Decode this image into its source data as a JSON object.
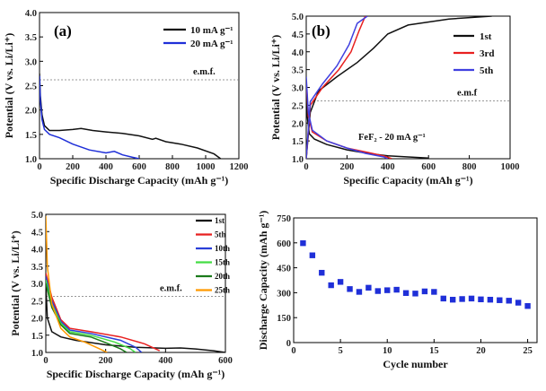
{
  "chart_data": [
    {
      "panel": "(a)",
      "type": "line",
      "xlabel": "Specific Discharge Capacity (mAh g⁻¹)",
      "ylabel": "Potential (V vs. Li/Li⁺)",
      "xlim": [
        0,
        1200
      ],
      "ylim": [
        1.0,
        4.0
      ],
      "xticks": [
        "0",
        "200",
        "400",
        "600",
        "800",
        "1000",
        "1200"
      ],
      "yticks": [
        "1.0",
        "1.5",
        "2.0",
        "2.5",
        "3.0",
        "3.5",
        "4.0"
      ],
      "hline": {
        "y": 2.62,
        "label": "e.m.f."
      },
      "legend_position": "top-right",
      "series": [
        {
          "name": "10 mA g⁻¹",
          "color": "#111111",
          "points": [
            [
              0,
              2.75
            ],
            [
              5,
              2.3
            ],
            [
              15,
              1.9
            ],
            [
              30,
              1.68
            ],
            [
              60,
              1.58
            ],
            [
              120,
              1.58
            ],
            [
              200,
              1.6
            ],
            [
              250,
              1.62
            ],
            [
              320,
              1.58
            ],
            [
              400,
              1.55
            ],
            [
              500,
              1.52
            ],
            [
              600,
              1.47
            ],
            [
              680,
              1.4
            ],
            [
              700,
              1.42
            ],
            [
              760,
              1.35
            ],
            [
              850,
              1.3
            ],
            [
              950,
              1.22
            ],
            [
              1050,
              1.1
            ],
            [
              1090,
              1.0
            ]
          ]
        },
        {
          "name": "20 mA g⁻¹",
          "color": "#1f2fd8",
          "points": [
            [
              0,
              2.7
            ],
            [
              5,
              2.2
            ],
            [
              15,
              1.8
            ],
            [
              30,
              1.6
            ],
            [
              60,
              1.5
            ],
            [
              120,
              1.43
            ],
            [
              200,
              1.3
            ],
            [
              300,
              1.18
            ],
            [
              400,
              1.12
            ],
            [
              450,
              1.15
            ],
            [
              500,
              1.08
            ],
            [
              560,
              1.03
            ],
            [
              600,
              1.0
            ]
          ]
        }
      ]
    },
    {
      "panel": "(b)",
      "type": "line",
      "xlabel": "Specific Capacity (mAh g⁻¹)",
      "ylabel": "Potential (V vs. Li/Li⁺)",
      "xlim": [
        0,
        1000
      ],
      "ylim": [
        1.0,
        5.0
      ],
      "xticks": [
        "0",
        "200",
        "400",
        "600",
        "800",
        "1000"
      ],
      "yticks": [
        "1.0",
        "1.5",
        "2.0",
        "2.5",
        "3.0",
        "3.5",
        "4.0",
        "4.5",
        "5.0"
      ],
      "hline": {
        "y": 2.62,
        "label": "e.m.f"
      },
      "annotation": "FeF₂ - 20 mA g⁻¹",
      "legend_position": "top-right",
      "series": [
        {
          "name": "1st",
          "color": "#111111",
          "discharge": [
            [
              0,
              3.2
            ],
            [
              5,
              2.2
            ],
            [
              15,
              1.7
            ],
            [
              40,
              1.55
            ],
            [
              100,
              1.4
            ],
            [
              200,
              1.25
            ],
            [
              300,
              1.15
            ],
            [
              400,
              1.08
            ],
            [
              500,
              1.05
            ],
            [
              600,
              1.02
            ]
          ],
          "charge": [
            [
              0,
              1.0
            ],
            [
              20,
              2.3
            ],
            [
              60,
              2.9
            ],
            [
              150,
              3.3
            ],
            [
              250,
              3.7
            ],
            [
              330,
              4.1
            ],
            [
              400,
              4.5
            ],
            [
              500,
              4.75
            ],
            [
              700,
              4.92
            ],
            [
              910,
              5.0
            ]
          ]
        },
        {
          "name": "3rd",
          "color": "#e82020",
          "discharge": [
            [
              0,
              3.2
            ],
            [
              10,
              2.2
            ],
            [
              30,
              1.75
            ],
            [
              100,
              1.5
            ],
            [
              200,
              1.3
            ],
            [
              300,
              1.18
            ],
            [
              380,
              1.08
            ],
            [
              420,
              1.0
            ]
          ],
          "charge": [
            [
              0,
              1.0
            ],
            [
              20,
              2.5
            ],
            [
              80,
              3.0
            ],
            [
              160,
              3.5
            ],
            [
              220,
              4.0
            ],
            [
              260,
              4.6
            ],
            [
              290,
              5.0
            ]
          ]
        },
        {
          "name": "5th",
          "color": "#4040e0",
          "discharge": [
            [
              0,
              3.3
            ],
            [
              10,
              2.3
            ],
            [
              30,
              1.8
            ],
            [
              100,
              1.5
            ],
            [
              200,
              1.3
            ],
            [
              290,
              1.15
            ],
            [
              380,
              1.05
            ],
            [
              400,
              1.0
            ]
          ],
          "charge": [
            [
              0,
              1.0
            ],
            [
              20,
              2.6
            ],
            [
              80,
              3.1
            ],
            [
              150,
              3.6
            ],
            [
              210,
              4.2
            ],
            [
              250,
              4.8
            ],
            [
              300,
              5.0
            ]
          ]
        }
      ]
    },
    {
      "panel": "(c)",
      "type": "line",
      "xlabel": "Specific Discharge Capacity (mAh g⁻¹)",
      "ylabel": "Potential (V vs. Li/Li⁺)",
      "xlim": [
        0,
        600
      ],
      "ylim": [
        1.0,
        5.0
      ],
      "xticks": [
        "0",
        "200",
        "400",
        "600"
      ],
      "yticks": [
        "1.0",
        "1.5",
        "2.0",
        "2.5",
        "3.0",
        "3.5",
        "4.0",
        "4.5",
        "5.0"
      ],
      "hline": {
        "y": 2.62,
        "label": "e.m.f."
      },
      "legend_position": "top-right",
      "series": [
        {
          "name": "1st",
          "color": "#111111",
          "points": [
            [
              0,
              3.0
            ],
            [
              5,
              2.0
            ],
            [
              20,
              1.6
            ],
            [
              50,
              1.45
            ],
            [
              100,
              1.35
            ],
            [
              200,
              1.22
            ],
            [
              300,
              1.15
            ],
            [
              400,
              1.12
            ],
            [
              450,
              1.13
            ],
            [
              500,
              1.1
            ],
            [
              560,
              1.05
            ],
            [
              600,
              1.0
            ]
          ]
        },
        {
          "name": "5th",
          "color": "#e82020",
          "points": [
            [
              0,
              3.3
            ],
            [
              20,
              2.6
            ],
            [
              50,
              1.95
            ],
            [
              80,
              1.7
            ],
            [
              150,
              1.6
            ],
            [
              250,
              1.45
            ],
            [
              330,
              1.25
            ],
            [
              380,
              1.05
            ]
          ]
        },
        {
          "name": "10th",
          "color": "#2a3fd8",
          "points": [
            [
              0,
              3.2
            ],
            [
              20,
              2.5
            ],
            [
              50,
              1.9
            ],
            [
              80,
              1.65
            ],
            [
              150,
              1.55
            ],
            [
              250,
              1.35
            ],
            [
              300,
              1.15
            ],
            [
              320,
              1.0
            ]
          ]
        },
        {
          "name": "15th",
          "color": "#44dd44",
          "points": [
            [
              0,
              3.1
            ],
            [
              20,
              2.4
            ],
            [
              50,
              1.85
            ],
            [
              80,
              1.6
            ],
            [
              150,
              1.5
            ],
            [
              230,
              1.3
            ],
            [
              280,
              1.12
            ],
            [
              300,
              1.0
            ]
          ]
        },
        {
          "name": "20th",
          "color": "#1a7a1a",
          "points": [
            [
              0,
              3.0
            ],
            [
              20,
              2.3
            ],
            [
              50,
              1.8
            ],
            [
              80,
              1.55
            ],
            [
              150,
              1.45
            ],
            [
              210,
              1.25
            ],
            [
              250,
              1.1
            ],
            [
              270,
              1.0
            ]
          ]
        },
        {
          "name": "25th",
          "color": "#ff9900",
          "points": [
            [
              0,
              4.95
            ],
            [
              5,
              3.5
            ],
            [
              20,
              2.4
            ],
            [
              50,
              1.7
            ],
            [
              80,
              1.45
            ],
            [
              130,
              1.3
            ],
            [
              180,
              1.1
            ],
            [
              205,
              1.0
            ]
          ]
        }
      ]
    },
    {
      "panel": "(d)",
      "type": "scatter",
      "xlabel": "Cycle number",
      "ylabel": "Discharge Capacity (mAh g⁻¹)",
      "xlim": [
        0,
        26
      ],
      "ylim": [
        0,
        750
      ],
      "xticks": [
        "0",
        "5",
        "10",
        "15",
        "20",
        "25"
      ],
      "yticks": [
        "0",
        "150",
        "300",
        "450",
        "600",
        "750"
      ],
      "marker": "square",
      "color": "#1f2fd8",
      "x": [
        1,
        2,
        3,
        4,
        5,
        6,
        7,
        8,
        9,
        10,
        11,
        12,
        13,
        14,
        15,
        16,
        17,
        18,
        19,
        20,
        21,
        22,
        23,
        24,
        25
      ],
      "y": [
        598,
        525,
        420,
        345,
        365,
        322,
        305,
        330,
        310,
        315,
        318,
        298,
        295,
        308,
        305,
        265,
        258,
        262,
        265,
        260,
        258,
        255,
        252,
        240,
        220
      ]
    }
  ]
}
